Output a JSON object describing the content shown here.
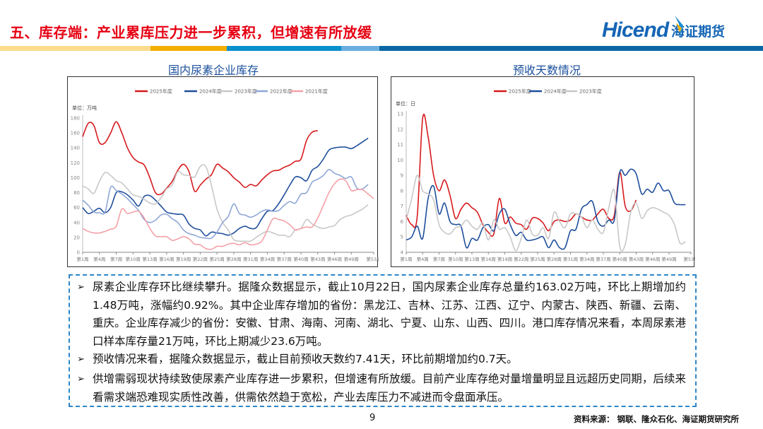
{
  "header": {
    "title": "五、库存端：产业累库压力进一步累积，但增速有所放缓",
    "logo_en": "Hicend",
    "logo_cn": "海证期货"
  },
  "colors": {
    "title": "#e60012",
    "brand_blue": "#1565b5",
    "band": [
      "#fbdc8c",
      "#f3ae00",
      "#0a8fcb",
      "#6aaedf",
      "#0a67a3"
    ]
  },
  "chart_data": [
    {
      "type": "line",
      "title": "国内尿素企业库存",
      "unit": "单位：万吨",
      "ylim": [
        0,
        180
      ],
      "yticks": [
        0,
        20,
        40,
        60,
        80,
        100,
        120,
        140,
        160,
        180
      ],
      "xrange": [
        1,
        53
      ],
      "xticks": [
        "第1周",
        "第4周",
        "第7周",
        "第10周",
        "第13周",
        "第16周",
        "第19周",
        "第22周",
        "第25周",
        "第28周",
        "第31周",
        "第34周",
        "第37周",
        "第40周",
        "第43周",
        "第46周",
        "第49周",
        "第53周"
      ],
      "grid": false,
      "legend": "top",
      "series": [
        {
          "name": "2025年度",
          "color": "#d7191c",
          "values": [
            155,
            173,
            170,
            147,
            147,
            160,
            175,
            160,
            140,
            127,
            121,
            117,
            100,
            80,
            78,
            86,
            95,
            110,
            118,
            108,
            82,
            90,
            98,
            104,
            118,
            113,
            108,
            100,
            94,
            87,
            91,
            89,
            97,
            104,
            109,
            110,
            114,
            117,
            122,
            125,
            150,
            161,
            163
          ]
        },
        {
          "name": "2024年度",
          "color": "#1f4e9c",
          "values": [
            60,
            52,
            55,
            59,
            53,
            60,
            80,
            81,
            77,
            70,
            62,
            75,
            76,
            70,
            62,
            54,
            52,
            51,
            50,
            38,
            32,
            30,
            22,
            27,
            26,
            25,
            23,
            26,
            32,
            35,
            32,
            33,
            45,
            55,
            56,
            65,
            77,
            90,
            101,
            100,
            96,
            110,
            115,
            125,
            137,
            140,
            141,
            141,
            139,
            143,
            148,
            153
          ]
        },
        {
          "name": "2023年度",
          "color": "#c8c8c8",
          "values": [
            89,
            85,
            79,
            95,
            107,
            103,
            96,
            93,
            85,
            77,
            75,
            71,
            66,
            65,
            73,
            85,
            90,
            108,
            104,
            103,
            101,
            115,
            115,
            90,
            58,
            40,
            30,
            17,
            15,
            15,
            15,
            20,
            25,
            28,
            26,
            23,
            23,
            21,
            30,
            32,
            44,
            38,
            34,
            32,
            34,
            36,
            44,
            48,
            50,
            54,
            58,
            64
          ]
        },
        {
          "name": "2022年度",
          "color": "#8ea6d6",
          "values": [
            70,
            63,
            54,
            53,
            54,
            87,
            83,
            78,
            72,
            64,
            56,
            44,
            40,
            43,
            50,
            51,
            45,
            40,
            30,
            25,
            23,
            20,
            19,
            19,
            27,
            40,
            48,
            65,
            52,
            50,
            47,
            50,
            55,
            57,
            55,
            56,
            63,
            68,
            66,
            78,
            80,
            94,
            98,
            103,
            111,
            106,
            103,
            99,
            101,
            86,
            85,
            91
          ]
        },
        {
          "name": "2021年度",
          "color": "#f4a0a8",
          "values": [
            32,
            28,
            26,
            26,
            28,
            31,
            35,
            58,
            52,
            54,
            55,
            46,
            32,
            22,
            21,
            21,
            16,
            18,
            21,
            18,
            11,
            10,
            5,
            4,
            8,
            8,
            11,
            12,
            10,
            13,
            10,
            11,
            15,
            30,
            45,
            44,
            42,
            37,
            30,
            32,
            34,
            34,
            46,
            63,
            80,
            92,
            98,
            96,
            83,
            84,
            84,
            78,
            72
          ]
        }
      ]
    },
    {
      "type": "line",
      "title": "预收天数情况",
      "unit": "单位：日",
      "ylim": [
        4,
        13
      ],
      "yticks": [
        4,
        5,
        6,
        7,
        8,
        9,
        10,
        11,
        12,
        13
      ],
      "xrange": [
        1,
        53
      ],
      "xticks": [
        "第1周",
        "第4周",
        "第7周",
        "第10周",
        "第13周",
        "第16周",
        "第19周",
        "第22周",
        "第25周",
        "第28周",
        "第31周",
        "第34周",
        "第37周",
        "第40周",
        "第43周",
        "第46周",
        "第49周",
        "第53周"
      ],
      "grid": false,
      "legend": "top",
      "series": [
        {
          "name": "2025年度",
          "color": "#d7191c",
          "values": [
            6.4,
            5.8,
            6.3,
            12.7,
            11.5,
            9.0,
            8.0,
            8.7,
            7.7,
            6.2,
            6.8,
            7.2,
            6.9,
            6.6,
            5.8,
            5.3,
            5.2,
            7.5,
            5.9,
            6.3,
            5.9,
            5.8,
            5.5,
            6.2,
            6.2,
            5.9,
            5.4,
            6.0,
            6.1,
            6.0,
            6.1,
            6.5,
            6.3,
            6.1,
            6.1,
            6.5,
            6.8,
            6.2,
            6.4,
            9.2,
            7.0,
            6.7,
            7.4
          ]
        },
        {
          "name": "2024年度",
          "color": "#1f4e9c",
          "values": [
            4.8,
            5.0,
            5.7,
            4.9,
            7.5,
            8.3,
            6.5,
            7.2,
            6.0,
            5.8,
            5.7,
            4.3,
            4.9,
            4.8,
            5.6,
            5.8,
            5.4,
            6.5,
            6.8,
            5.8,
            5.1,
            5.3,
            4.8,
            4.8,
            4.9,
            5.0,
            4.3,
            4.8,
            4.3,
            4.3,
            5.4,
            5.5,
            6.8,
            7.1,
            7.3,
            6.0,
            5.7,
            6.1,
            6.1,
            9.2,
            9.0,
            9.4,
            9.1,
            7.8,
            8.1,
            7.9,
            8.5,
            8.0,
            8.0,
            7.2,
            7.1,
            7.1
          ]
        },
        {
          "name": "2023年度",
          "color": "#c8c8c8",
          "values": [
            6.1,
            7.5,
            9.0,
            8.0,
            7.8,
            7.4,
            5.8,
            5.3,
            5.2,
            5.6,
            5.7,
            6.1,
            5.7,
            5.5,
            5.9,
            4.8,
            6.1,
            5.5,
            5.6,
            5.0,
            4.1,
            4.9,
            6.1,
            5.2,
            5.1,
            5.6,
            4.9,
            6.6,
            6.0,
            5.6,
            6.5,
            6.5,
            6.3,
            5.6,
            6.1,
            5.5,
            5.3,
            6.9,
            8.0,
            4.4,
            4.5,
            6.6,
            7.2,
            6.2,
            6.7,
            6.9,
            6.8,
            6.6,
            6.4,
            5.8,
            4.6,
            4.7
          ]
        }
      ]
    }
  ],
  "textbox": {
    "paragraphs": [
      "尿素企业库存环比继续攀升。据隆众数据显示，截止10月22日，国内尿素企业库存总量约163.02万吨，环比上期增加约1.48万吨，涨幅约0.92%。其中企业库存增加的省份：黑龙江、吉林、江苏、江西、辽宁、内蒙古、陕西、新疆、云南、重庆。企业库存减少的省份：安徽、甘肃、海南、河南、湖北、宁夏、山东、山西、四川。港口库存情况来看，本周尿素港口样本库存量21万吨，环比上期减少23.6万吨。",
      "预收情况来看，据隆众数据显示，截止目前预收天数约7.41天，环比前期增加约0.7天。",
      "供增需弱现状持续致使尿素产业库存进一步累积，但增速有所放缓。目前产业库存绝对量增量明显且远超历史同期，后续来看需求端恐难现实质性改善，供需依然趋于宽松，产业去库压力不减进而令盘面承压。"
    ],
    "bullet_icon": "arrow-bullet-icon"
  },
  "footer": {
    "page": "9",
    "source": "资料来源：  钢联、隆众石化、海证期货研究所"
  }
}
